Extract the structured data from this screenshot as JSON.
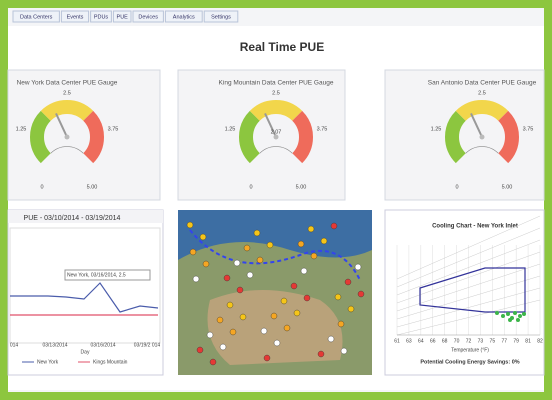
{
  "tabs": [
    "Data Centers",
    "Events",
    "PDUs",
    "PUE",
    "Devices",
    "Analytics",
    "Settings"
  ],
  "title": "Real Time PUE",
  "gauges": [
    {
      "title": "New York Data Center PUE Gauge",
      "labels": [
        "2.5",
        "1.25",
        "3.75",
        "0",
        "5.00"
      ]
    },
    {
      "title": "King Mountain Data Center PUE Gauge",
      "labels": [
        "2.5",
        "1.25",
        "3.75",
        "0",
        "5.00"
      ],
      "reading": "2.07"
    },
    {
      "title": "San Antonio Data Center PUE Gauge",
      "labels": [
        "2.5",
        "1.25",
        "3.75",
        "0",
        "5.00"
      ]
    }
  ],
  "pue_chart": {
    "title": "PUE - 03/10/2014 - 03/19/2014",
    "tooltip": "New York, 03/16/2014, 2.5",
    "x_labels": [
      "014",
      "03/13/2014",
      "03/16/2014",
      "03/19/2 014"
    ],
    "x_axis": "Day",
    "legend": [
      "New York",
      "Kings Mountain"
    ]
  },
  "cooling_chart": {
    "title": "Cooling Chart - New York Inlet",
    "x_labels": [
      "61",
      "63",
      "64",
      "66",
      "68",
      "70",
      "72",
      "73",
      "75",
      "77",
      "79",
      "81",
      "82"
    ],
    "x_axis": "Temperature (°F)",
    "footer": "Potential Cooling Energy Savings: 0%"
  }
}
